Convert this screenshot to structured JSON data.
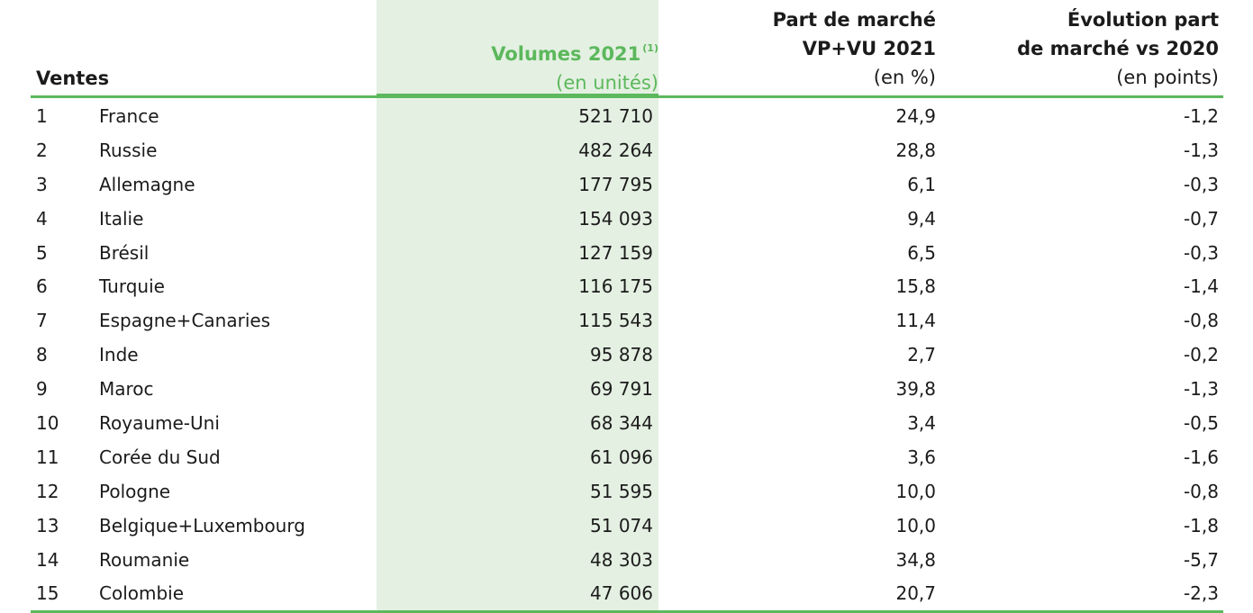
{
  "header": {
    "ventes": "Ventes",
    "volumes_title": "Volumes 2021",
    "volumes_note": "(1)",
    "volumes_unit": "(en unités)",
    "part_line1": "Part de marché",
    "part_line2": "VP+VU 2021",
    "part_unit": "(en %)",
    "evol_line1": "Évolution part",
    "evol_line2": "de marché vs 2020",
    "evol_unit": "(en points)"
  },
  "colors": {
    "accent_green": "#5cb85c",
    "highlight_column": "#e4f0e2"
  },
  "rows": [
    {
      "rank": "1",
      "country": "France",
      "volume": "521 710",
      "part": "24,9",
      "evolution": "-1,2"
    },
    {
      "rank": "2",
      "country": "Russie",
      "volume": "482 264",
      "part": "28,8",
      "evolution": "-1,3"
    },
    {
      "rank": "3",
      "country": "Allemagne",
      "volume": "177 795",
      "part": "6,1",
      "evolution": "-0,3"
    },
    {
      "rank": "4",
      "country": "Italie",
      "volume": "154 093",
      "part": "9,4",
      "evolution": "-0,7"
    },
    {
      "rank": "5",
      "country": "Brésil",
      "volume": "127 159",
      "part": "6,5",
      "evolution": "-0,3"
    },
    {
      "rank": "6",
      "country": "Turquie",
      "volume": "116 175",
      "part": "15,8",
      "evolution": "-1,4"
    },
    {
      "rank": "7",
      "country": "Espagne+Canaries",
      "volume": "115 543",
      "part": "11,4",
      "evolution": "-0,8"
    },
    {
      "rank": "8",
      "country": "Inde",
      "volume": "95 878",
      "part": "2,7",
      "evolution": "-0,2"
    },
    {
      "rank": "9",
      "country": "Maroc",
      "volume": "69 791",
      "part": "39,8",
      "evolution": "-1,3"
    },
    {
      "rank": "10",
      "country": "Royaume-Uni",
      "volume": "68 344",
      "part": "3,4",
      "evolution": "-0,5"
    },
    {
      "rank": "11",
      "country": "Corée du Sud",
      "volume": "61 096",
      "part": "3,6",
      "evolution": "-1,6"
    },
    {
      "rank": "12",
      "country": "Pologne",
      "volume": "51 595",
      "part": "10,0",
      "evolution": "-0,8"
    },
    {
      "rank": "13",
      "country": "Belgique+Luxembourg",
      "volume": "51 074",
      "part": "10,0",
      "evolution": "-1,8"
    },
    {
      "rank": "14",
      "country": "Roumanie",
      "volume": "48 303",
      "part": "34,8",
      "evolution": "-5,7"
    },
    {
      "rank": "15",
      "country": "Colombie",
      "volume": "47 606",
      "part": "20,7",
      "evolution": "-2,3"
    }
  ]
}
